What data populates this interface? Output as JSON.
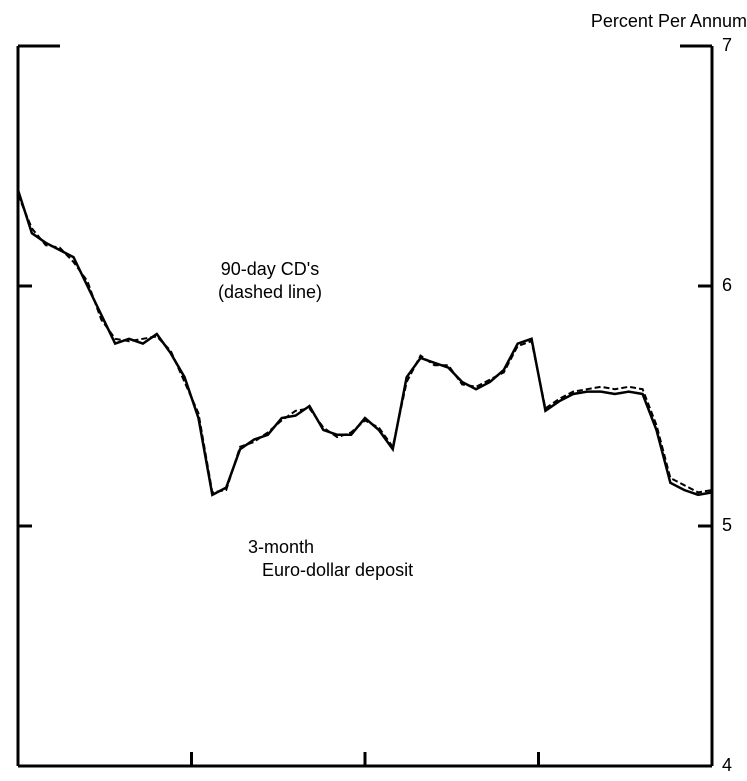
{
  "chart_data": {
    "type": "line",
    "y_axis_label": "Percent Per Annum",
    "annotations": [
      {
        "lines": [
          "90-day CD's",
          "(dashed line)"
        ]
      },
      {
        "lines": [
          "3-month",
          "Euro-dollar deposit"
        ]
      }
    ],
    "x": [
      0,
      2,
      4,
      6,
      8,
      10,
      12,
      14,
      16,
      18,
      20,
      22,
      24,
      26,
      28,
      30,
      32,
      34,
      36,
      38,
      40,
      42,
      44,
      46,
      48,
      50,
      52,
      54,
      56,
      58,
      60,
      62,
      64,
      66,
      68,
      70,
      72,
      74,
      76,
      78,
      80,
      82,
      84,
      86,
      88,
      90,
      92,
      94,
      96,
      98,
      100
    ],
    "series": [
      {
        "name": "3-month Euro-dollar deposit",
        "color": "#000000",
        "dash": false,
        "values": [
          6.4,
          6.22,
          6.18,
          6.15,
          6.12,
          6.0,
          5.88,
          5.76,
          5.78,
          5.76,
          5.8,
          5.72,
          5.62,
          5.45,
          5.13,
          5.16,
          5.32,
          5.36,
          5.38,
          5.45,
          5.46,
          5.5,
          5.4,
          5.38,
          5.38,
          5.45,
          5.4,
          5.32,
          5.62,
          5.7,
          5.68,
          5.66,
          5.6,
          5.57,
          5.6,
          5.65,
          5.76,
          5.78,
          5.48,
          5.52,
          5.55,
          5.56,
          5.56,
          5.55,
          5.56,
          5.55,
          5.4,
          5.18,
          5.15,
          5.13,
          5.14
        ]
      },
      {
        "name": "90-day CD's",
        "color": "#000000",
        "dash": true,
        "values": [
          6.38,
          6.24,
          6.17,
          6.16,
          6.1,
          6.02,
          5.86,
          5.78,
          5.77,
          5.78,
          5.79,
          5.73,
          5.6,
          5.47,
          5.14,
          5.15,
          5.33,
          5.35,
          5.39,
          5.44,
          5.48,
          5.49,
          5.41,
          5.37,
          5.39,
          5.44,
          5.41,
          5.33,
          5.6,
          5.71,
          5.67,
          5.67,
          5.59,
          5.58,
          5.61,
          5.64,
          5.75,
          5.77,
          5.49,
          5.53,
          5.56,
          5.57,
          5.58,
          5.57,
          5.58,
          5.57,
          5.42,
          5.2,
          5.17,
          5.14,
          5.15
        ]
      }
    ],
    "xlim": [
      0,
      100
    ],
    "xticks": [
      25,
      50,
      75
    ],
    "ylim": [
      4,
      7
    ],
    "yticks": [
      4,
      5,
      6,
      7
    ]
  }
}
